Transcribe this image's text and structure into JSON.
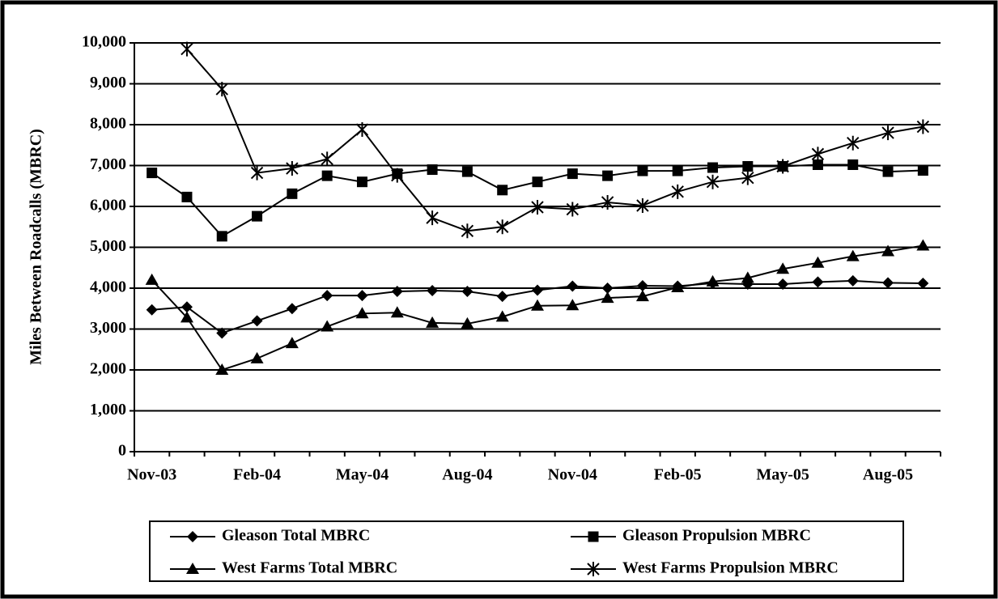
{
  "chart_data": {
    "type": "line",
    "y_label": "Miles Between Roadcalls (MBRC)",
    "categories": [
      "Nov-03",
      null,
      null,
      "Feb-04",
      null,
      null,
      "May-04",
      null,
      null,
      "Aug-04",
      null,
      null,
      "Nov-04",
      null,
      null,
      "Feb-05",
      null,
      null,
      "May-05",
      null,
      null,
      "Aug-05",
      null
    ],
    "ylim": [
      0,
      10000
    ],
    "yticks": [
      0,
      {
        "value": 1000,
        "label": "1,000"
      },
      {
        "value": 2000,
        "label": "2,000"
      },
      {
        "value": 3000,
        "label": "3,000"
      },
      {
        "value": 4000,
        "label": "4,000"
      },
      {
        "value": 5000,
        "label": "5,000"
      },
      {
        "value": 6000,
        "label": "6,000"
      },
      {
        "value": 7000,
        "label": "7,000"
      },
      {
        "value": 8000,
        "label": "8,000"
      },
      {
        "value": 9000,
        "label": "9,000"
      },
      {
        "value": 10000,
        "label": "10,000"
      }
    ],
    "grid": true,
    "series": [
      {
        "name": "Gleason Total MBRC",
        "color": "#000000",
        "marker": "diamond",
        "values": [
          3470,
          3540,
          2900,
          3200,
          3500,
          3820,
          3820,
          3920,
          3940,
          3920,
          3800,
          3950,
          4050,
          4000,
          4060,
          4050,
          4120,
          4100,
          4100,
          4150,
          4180,
          4130,
          4120
        ]
      },
      {
        "name": "Gleason Propulsion MBRC",
        "color": "#000000",
        "marker": "square",
        "values": [
          6820,
          6230,
          5270,
          5760,
          6310,
          6750,
          6600,
          6800,
          6900,
          6850,
          6400,
          6600,
          6800,
          6750,
          6870,
          6870,
          6950,
          6980,
          6980,
          7020,
          7020,
          6850,
          6880
        ]
      },
      {
        "name": "West Farms Total MBRC",
        "color": "#000000",
        "marker": "triangle",
        "values": [
          4200,
          3280,
          2000,
          2280,
          2650,
          3060,
          3380,
          3400,
          3150,
          3130,
          3300,
          3570,
          3580,
          3760,
          3800,
          4020,
          4160,
          4250,
          4470,
          4620,
          4780,
          4900,
          5040
        ]
      },
      {
        "name": "West Farms Propulsion MBRC",
        "color": "#000000",
        "marker": "star",
        "values": [
          null,
          9850,
          8870,
          6820,
          6930,
          7160,
          7880,
          6760,
          5720,
          5400,
          5500,
          5980,
          5930,
          6100,
          6020,
          6360,
          6600,
          6700,
          6980,
          7280,
          7550,
          7800,
          7950
        ]
      }
    ]
  }
}
